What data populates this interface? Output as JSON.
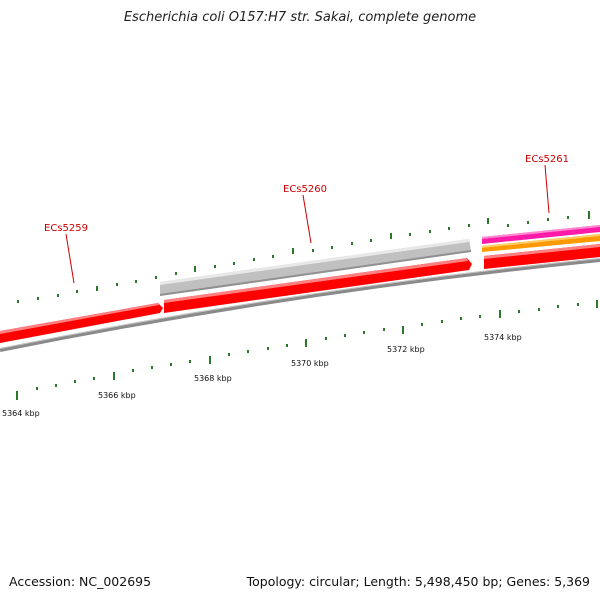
{
  "title": "Escherichia coli O157:H7 str. Sakai, complete genome",
  "footer": {
    "accession": "Accession: NC_002695",
    "summary": "Topology: circular; Length: 5,498,450 bp; Genes: 5,369"
  },
  "genes": [
    {
      "name": "ECs5259"
    },
    {
      "name": "ECs5260"
    },
    {
      "name": "ECs5261"
    }
  ],
  "ruler": {
    "labels": [
      "5364 kbp",
      "5366 kbp",
      "5368 kbp",
      "5370 kbp",
      "5372 kbp",
      "5374 kbp"
    ]
  },
  "colors": {
    "gene_cds": "#ff0000",
    "gene_grey": "#c0c0c0",
    "gene_magenta": "#ff1aa8",
    "gene_orange": "#ff9900",
    "backbone": "#8a8a8a",
    "ticks": "#2a7a2a",
    "label": "#cc0000"
  }
}
